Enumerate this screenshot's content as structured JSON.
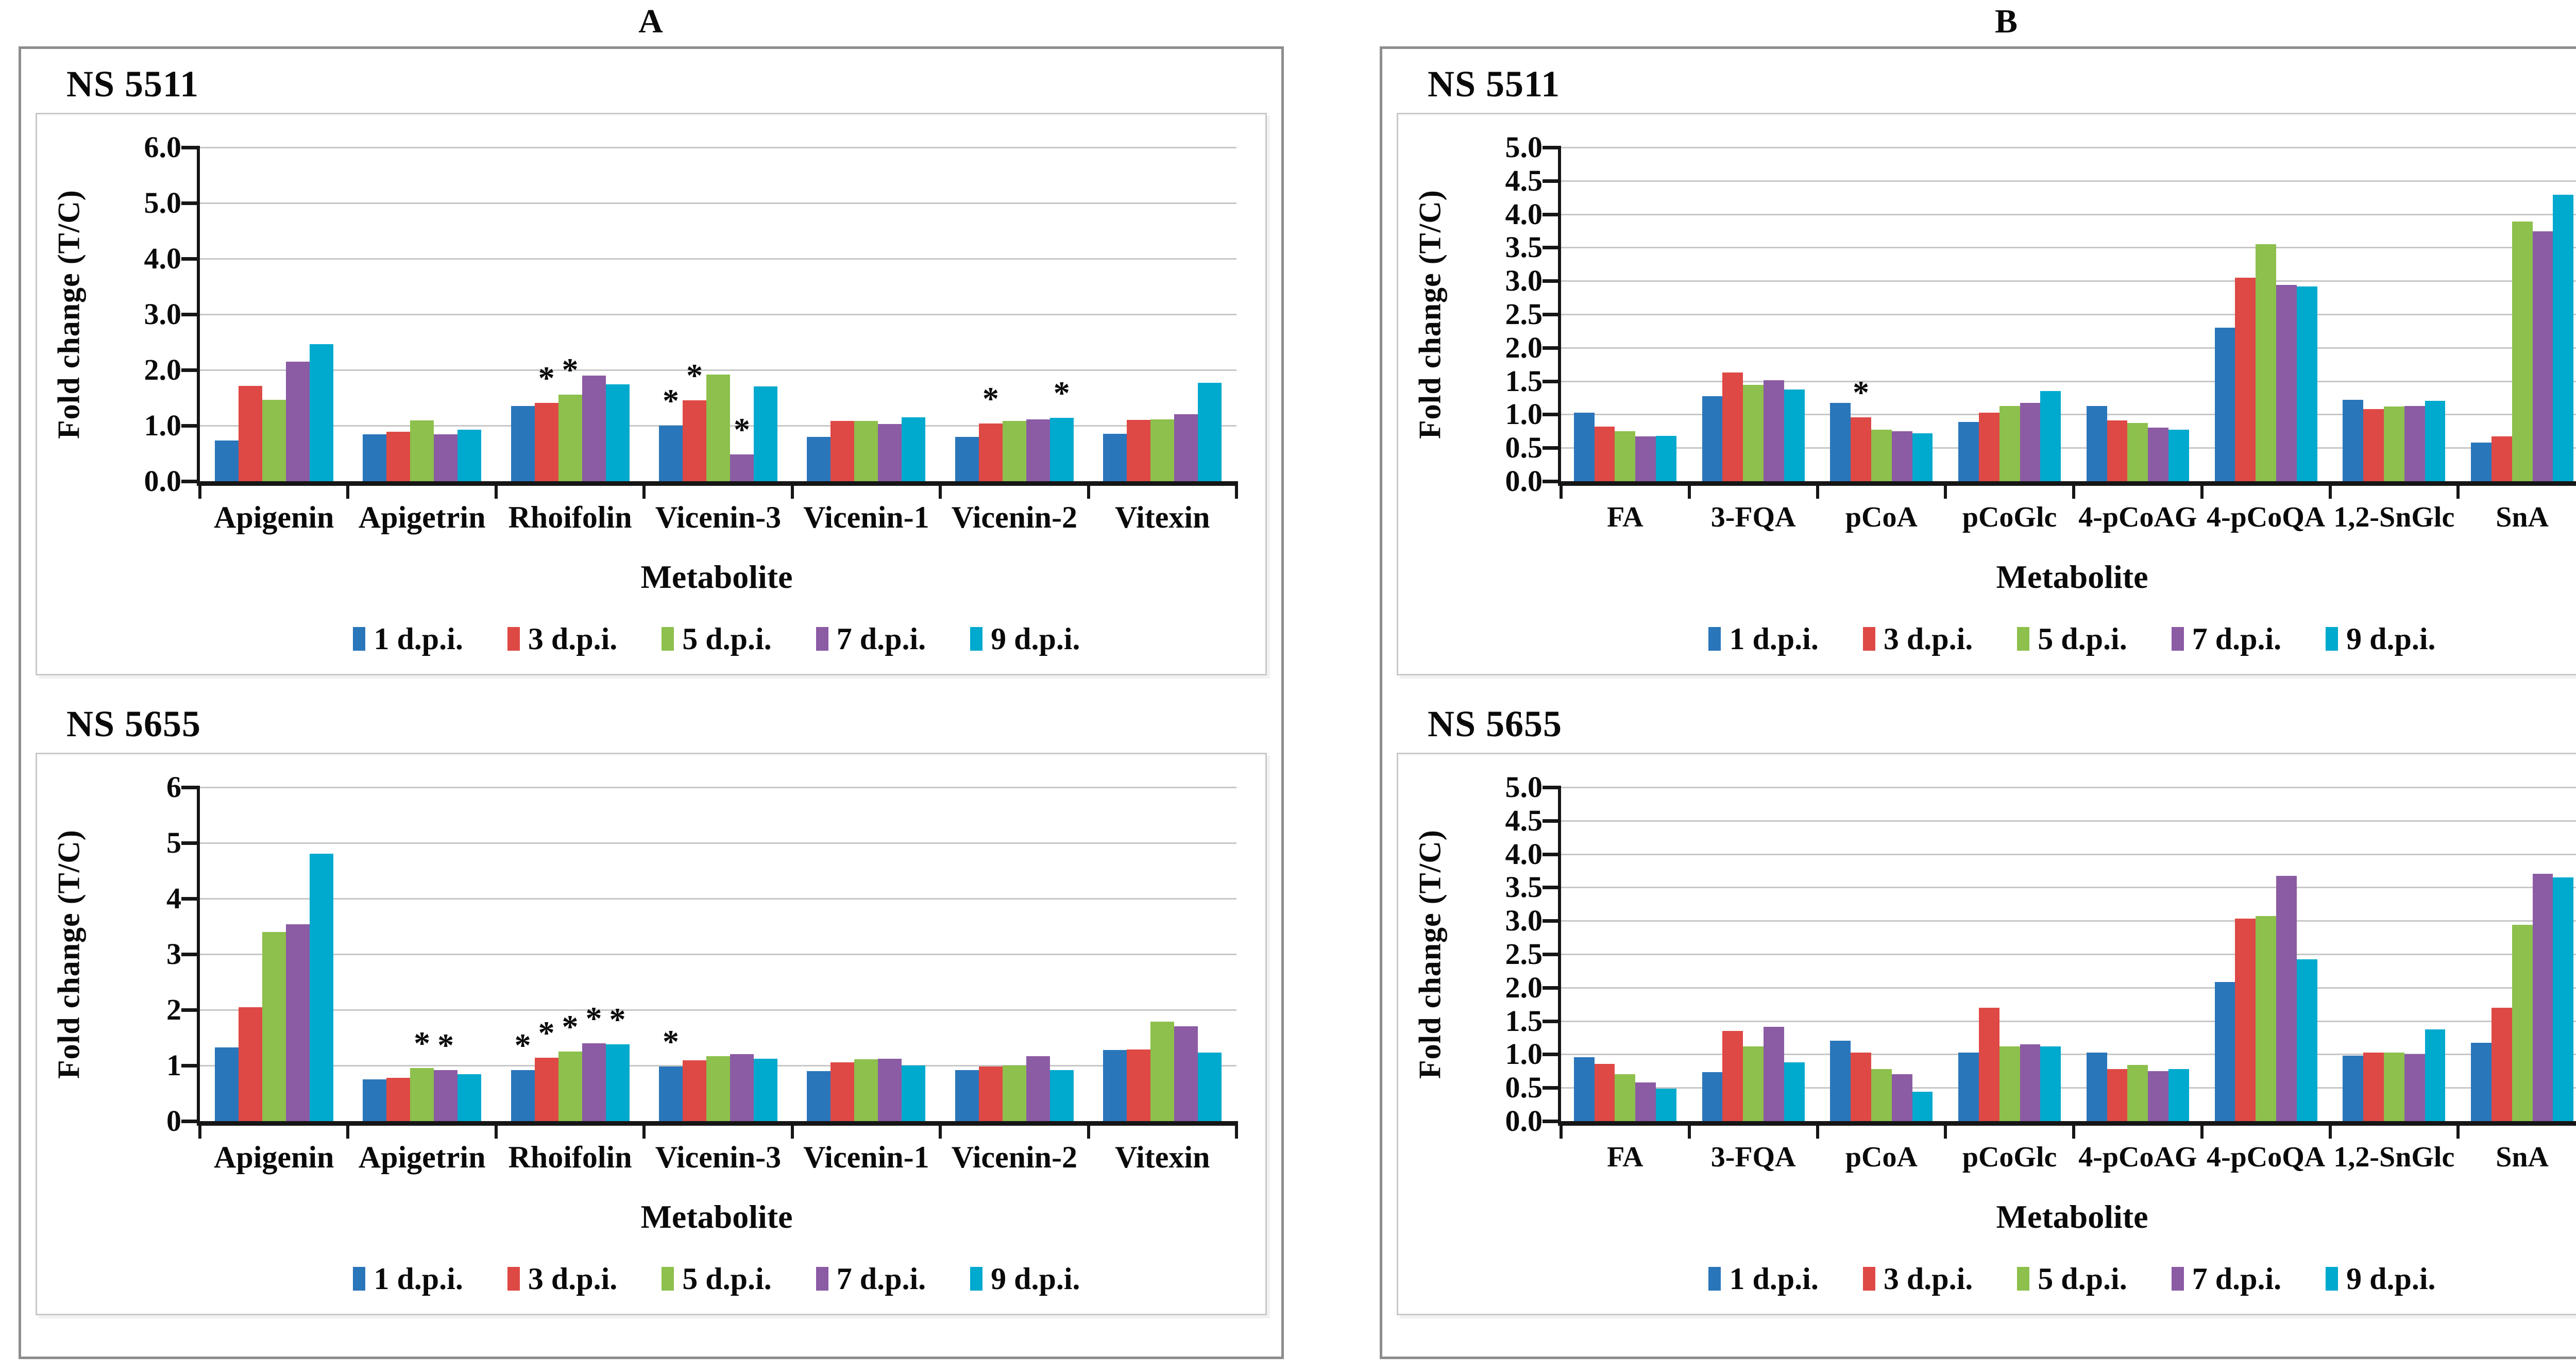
{
  "figure": {
    "panel_a_label": "A",
    "panel_b_label": "B",
    "colors": [
      "#2A76BA",
      "#DE4945",
      "#8DC04C",
      "#8B5BA4",
      "#00A9CE"
    ],
    "legend_labels": [
      "1 d.p.i.",
      "3 d.p.i.",
      "5 d.p.i.",
      "7 d.p.i.",
      "9 d.p.i."
    ]
  },
  "chart_data": [
    {
      "type": "bar",
      "panel": "A",
      "title": "NS 5511",
      "ylabel": "Fold change (T/C)",
      "xlabel": "Metabolite",
      "ylim": [
        0,
        6
      ],
      "grid": true,
      "legend_position": "bottom",
      "ytick_values": [
        6,
        5,
        4,
        3,
        2,
        1,
        0
      ],
      "ytick_labels": [
        "6.0",
        "5.0",
        "4.0",
        "3.0",
        "2.0",
        "1.0",
        "0.0"
      ],
      "categories": [
        "Apigenin",
        "Apigetrin",
        "Rhoifolin",
        "Vicenin-3",
        "Vicenin-1",
        "Vicenin-2",
        "Vitexin"
      ],
      "series": [
        {
          "name": "1 d.p.i.",
          "values": [
            0.73,
            0.84,
            1.35,
            1.0,
            0.8,
            0.8,
            0.85
          ]
        },
        {
          "name": "3 d.p.i.",
          "values": [
            1.71,
            0.89,
            1.41,
            1.45,
            1.08,
            1.04,
            1.1
          ]
        },
        {
          "name": "5 d.p.i.",
          "values": [
            1.46,
            1.09,
            1.56,
            1.92,
            1.08,
            1.08,
            1.11
          ]
        },
        {
          "name": "7 d.p.i.",
          "values": [
            2.15,
            0.84,
            1.9,
            0.48,
            1.03,
            1.11,
            1.2
          ]
        },
        {
          "name": "9 d.p.i.",
          "values": [
            2.46,
            0.93,
            1.74,
            1.7,
            1.15,
            1.14,
            1.77
          ]
        }
      ],
      "significance": [
        {
          "category": "Rhoifolin",
          "series": "3 d.p.i."
        },
        {
          "category": "Rhoifolin",
          "series": "5 d.p.i."
        },
        {
          "category": "Vicenin-3",
          "series": "1 d.p.i."
        },
        {
          "category": "Vicenin-3",
          "series": "3 d.p.i."
        },
        {
          "category": "Vicenin-3",
          "series": "7 d.p.i."
        },
        {
          "category": "Vicenin-2",
          "series": "3 d.p.i."
        },
        {
          "category": "Vicenin-2",
          "series": "9 d.p.i."
        }
      ]
    },
    {
      "type": "bar",
      "panel": "A",
      "title": "NS 5655",
      "ylabel": "Fold change (T/C)",
      "xlabel": "Metabolite",
      "ylim": [
        0,
        6
      ],
      "grid": true,
      "legend_position": "bottom",
      "ytick_values": [
        6,
        5,
        4,
        3,
        2,
        1,
        0
      ],
      "ytick_labels": [
        "6",
        "5",
        "4",
        "3",
        "2",
        "1",
        "0"
      ],
      "categories": [
        "Apigenin",
        "Apigetrin",
        "Rhoifolin",
        "Vicenin-3",
        "Vicenin-1",
        "Vicenin-2",
        "Vitexin"
      ],
      "series": [
        {
          "name": "1 d.p.i.",
          "values": [
            1.32,
            0.75,
            0.92,
            0.98,
            0.9,
            0.92,
            1.28
          ]
        },
        {
          "name": "3 d.p.i.",
          "values": [
            2.05,
            0.78,
            1.14,
            1.09,
            1.06,
            0.98,
            1.29
          ]
        },
        {
          "name": "5 d.p.i.",
          "values": [
            3.4,
            0.95,
            1.25,
            1.17,
            1.11,
            1.0,
            1.79
          ]
        },
        {
          "name": "7 d.p.i.",
          "values": [
            3.54,
            0.92,
            1.4,
            1.2,
            1.12,
            1.17,
            1.7
          ]
        },
        {
          "name": "9 d.p.i.",
          "values": [
            4.81,
            0.84,
            1.38,
            1.12,
            1.0,
            0.92,
            1.23
          ]
        }
      ],
      "significance": [
        {
          "category": "Apigetrin",
          "series": "5 d.p.i."
        },
        {
          "category": "Apigetrin",
          "series": "7 d.p.i."
        },
        {
          "category": "Rhoifolin",
          "series": "1 d.p.i."
        },
        {
          "category": "Rhoifolin",
          "series": "3 d.p.i."
        },
        {
          "category": "Rhoifolin",
          "series": "5 d.p.i."
        },
        {
          "category": "Rhoifolin",
          "series": "7 d.p.i."
        },
        {
          "category": "Rhoifolin",
          "series": "9 d.p.i."
        },
        {
          "category": "Vicenin-3",
          "series": "1 d.p.i."
        }
      ]
    },
    {
      "type": "bar",
      "panel": "B",
      "title": "NS 5511",
      "ylabel": "Fold change (T/C)",
      "xlabel": "Metabolite",
      "ylim": [
        0,
        5
      ],
      "grid": true,
      "legend_position": "bottom",
      "ytick_values": [
        5,
        4.5,
        4,
        3.5,
        3,
        2.5,
        2,
        1.5,
        1,
        0.5,
        0
      ],
      "ytick_labels": [
        "5.0",
        "4.5",
        "4.0",
        "3.5",
        "3.0",
        "2.5",
        "2.0",
        "1.5",
        "1.0",
        "0.5",
        "0.0"
      ],
      "categories": [
        "FA",
        "3-FQA",
        "pCoA",
        "pCoGlc",
        "4-pCoAG",
        "4-pCoQA",
        "1,2-SnGlc",
        "SnA"
      ],
      "series": [
        {
          "name": "1 d.p.i.",
          "values": [
            1.03,
            1.27,
            1.17,
            0.89,
            1.13,
            2.3,
            1.22,
            0.58
          ]
        },
        {
          "name": "3 d.p.i.",
          "values": [
            0.82,
            1.63,
            0.96,
            1.03,
            0.91,
            3.05,
            1.08,
            0.67
          ]
        },
        {
          "name": "5 d.p.i.",
          "values": [
            0.75,
            1.44,
            0.77,
            1.13,
            0.87,
            3.55,
            1.12,
            3.89
          ]
        },
        {
          "name": "7 d.p.i.",
          "values": [
            0.67,
            1.51,
            0.75,
            1.17,
            0.8,
            2.94,
            1.13,
            3.74
          ]
        },
        {
          "name": "9 d.p.i.",
          "values": [
            0.68,
            1.37,
            0.72,
            1.35,
            0.77,
            2.92,
            1.2,
            4.29
          ]
        }
      ],
      "significance": [
        {
          "category": "pCoA",
          "series": "3 d.p.i."
        }
      ]
    },
    {
      "type": "bar",
      "panel": "B",
      "title": "NS 5655",
      "ylabel": "Fold change (T/C)",
      "xlabel": "Metabolite",
      "ylim": [
        0,
        5
      ],
      "grid": true,
      "legend_position": "bottom",
      "ytick_values": [
        5,
        4.5,
        4,
        3.5,
        3,
        2.5,
        2,
        1.5,
        1,
        0.5,
        0
      ],
      "ytick_labels": [
        "5.0",
        "4.5",
        "4.0",
        "3.5",
        "3.0",
        "2.5",
        "2.0",
        "1.5",
        "1.0",
        "0.5",
        "0.0"
      ],
      "categories": [
        "FA",
        "3-FQA",
        "pCoA",
        "pCoGlc",
        "4-pCoAG",
        "4-pCoQA",
        "1,2-SnGlc",
        "SnA"
      ],
      "series": [
        {
          "name": "1 d.p.i.",
          "values": [
            0.96,
            0.73,
            1.2,
            1.03,
            1.03,
            2.08,
            0.98,
            1.17
          ]
        },
        {
          "name": "3 d.p.i.",
          "values": [
            0.86,
            1.35,
            1.03,
            1.7,
            0.78,
            3.03,
            1.03,
            1.7
          ]
        },
        {
          "name": "5 d.p.i.",
          "values": [
            0.7,
            1.12,
            0.78,
            1.12,
            0.84,
            3.07,
            1.03,
            2.94
          ]
        },
        {
          "name": "7 d.p.i.",
          "values": [
            0.58,
            1.41,
            0.7,
            1.15,
            0.75,
            3.67,
            1.0,
            3.7
          ]
        },
        {
          "name": "9 d.p.i.",
          "values": [
            0.49,
            0.88,
            0.44,
            1.12,
            0.78,
            2.42,
            1.37,
            3.65
          ]
        }
      ],
      "significance": []
    }
  ]
}
